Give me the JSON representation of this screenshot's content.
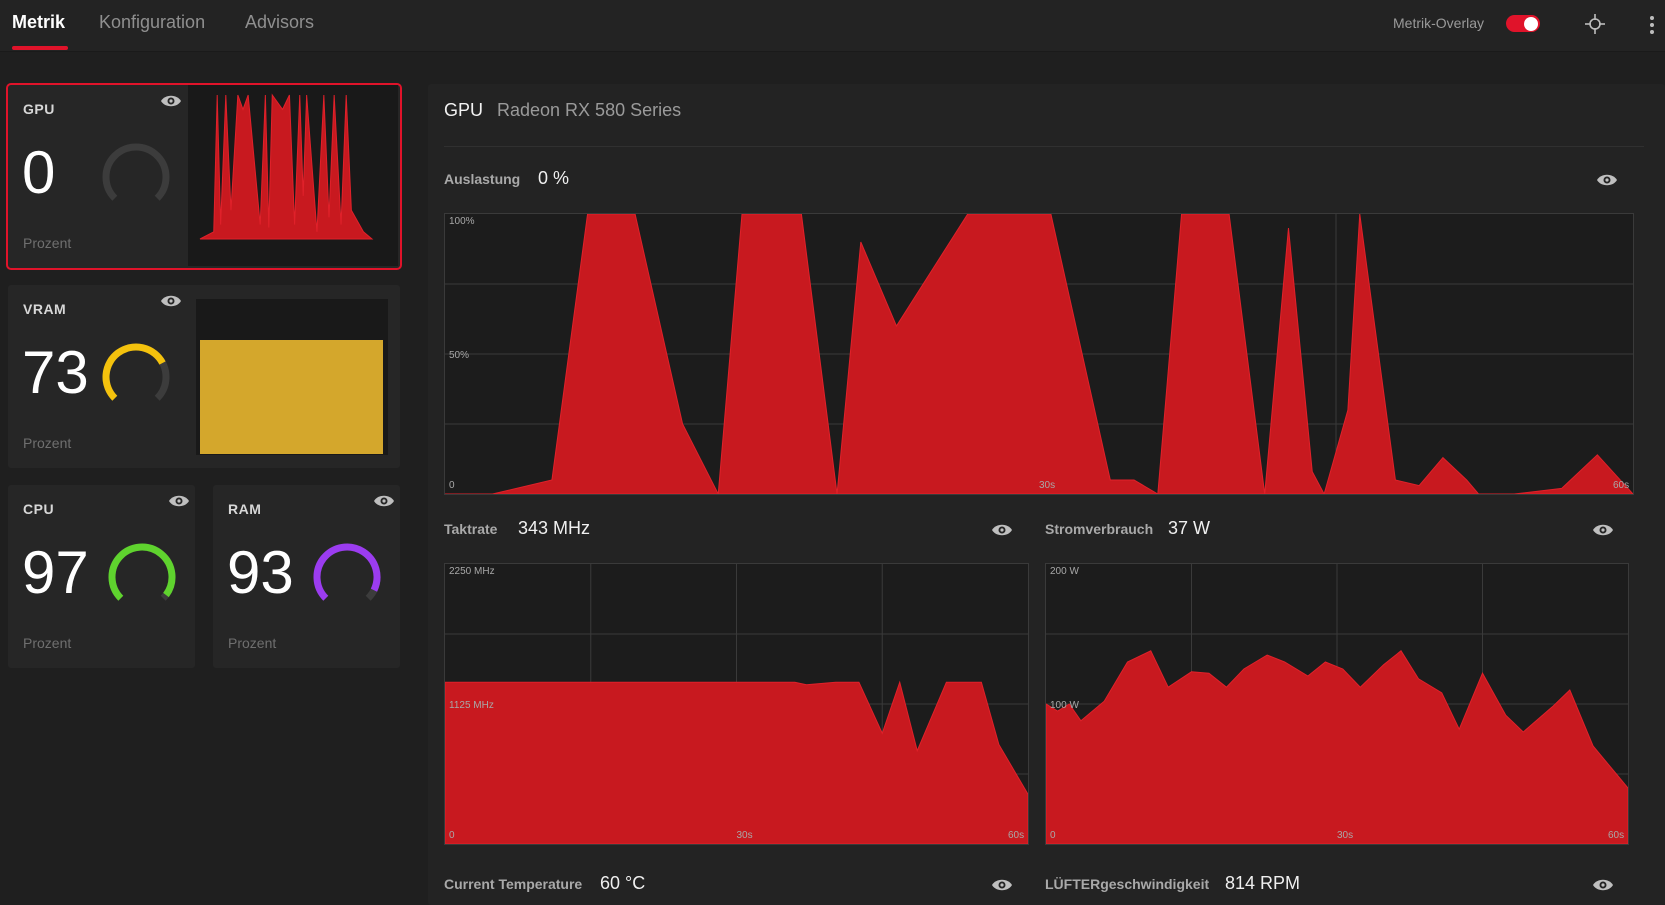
{
  "nav": {
    "tabs": [
      {
        "label": "Metrik"
      },
      {
        "label": "Konfiguration"
      },
      {
        "label": "Advisors"
      }
    ],
    "overlay_label": "Metrik-Overlay",
    "accent": "#e0132a"
  },
  "cards": {
    "gpu": {
      "title": "GPU",
      "value": "0",
      "unit": "Prozent",
      "level": 0,
      "color": "#e0132a"
    },
    "vram": {
      "title": "VRAM",
      "value": "73",
      "unit": "Prozent",
      "level": 73,
      "color": "#f4c20d"
    },
    "cpu": {
      "title": "CPU",
      "value": "97",
      "unit": "Prozent",
      "level": 97,
      "color": "#5fd32e"
    },
    "ram": {
      "title": "RAM",
      "value": "93",
      "unit": "Prozent",
      "level": 93,
      "color": "#9b3cf0"
    }
  },
  "panel": {
    "title": "GPU",
    "subtitle": "Radeon RX 580 Series",
    "metrics": {
      "auslastung": {
        "label": "Auslastung",
        "value": "0 %"
      },
      "taktrate": {
        "label": "Taktrate",
        "value": "343 MHz"
      },
      "strom": {
        "label": "Stromverbrauch",
        "value": "37 W"
      },
      "temp": {
        "label": "Current Temperature",
        "value": "60 °C"
      },
      "fan": {
        "label": "LÜFTERgeschwindigkeit",
        "value": "814 RPM"
      }
    }
  },
  "chart_data": [
    {
      "type": "area",
      "name": "auslastung",
      "x": [
        0,
        4,
        9,
        12,
        14,
        16,
        20,
        23,
        25,
        28,
        30,
        33,
        35,
        38,
        44,
        48,
        51,
        56,
        58,
        60,
        62,
        66,
        69,
        71,
        73,
        74,
        76,
        77,
        80,
        82,
        84,
        86,
        87,
        90,
        94,
        97,
        100
      ],
      "y": [
        0,
        0,
        5,
        100,
        100,
        100,
        25,
        0,
        100,
        100,
        100,
        0,
        90,
        60,
        100,
        100,
        100,
        5,
        5,
        0,
        100,
        100,
        0,
        95,
        8,
        0,
        30,
        100,
        5,
        3,
        13,
        5,
        0,
        0,
        2,
        14,
        0
      ],
      "yticks": [
        "100%",
        "50%",
        "0"
      ],
      "xticks": [
        "30s",
        "60s"
      ],
      "ylim": [
        0,
        100
      ],
      "color": "#c8191f"
    },
    {
      "type": "area",
      "name": "taktrate",
      "x": [
        0,
        20,
        40,
        55,
        60,
        62,
        67,
        68,
        71,
        75,
        78,
        81,
        86,
        88,
        92,
        95,
        100
      ],
      "y": [
        1300,
        1300,
        1300,
        1300,
        1300,
        1280,
        1300,
        1300,
        1300,
        890,
        1300,
        750,
        1300,
        1300,
        1300,
        800,
        400
      ],
      "yticks": [
        "2250 MHz",
        "1125 MHz",
        "0"
      ],
      "xticks": [
        "30s",
        "60s"
      ],
      "ylim": [
        0,
        2250
      ],
      "color": "#c8191f"
    },
    {
      "type": "area",
      "name": "stromverbrauch",
      "x": [
        0,
        2,
        4,
        6,
        10,
        14,
        18,
        21,
        25,
        28,
        31,
        34,
        38,
        41,
        45,
        48,
        51,
        54,
        58,
        61,
        64,
        68,
        71,
        75,
        79,
        82,
        87,
        90,
        94,
        98,
        100
      ],
      "y": [
        100,
        95,
        100,
        88,
        102,
        130,
        138,
        112,
        123,
        122,
        112,
        125,
        135,
        130,
        120,
        130,
        125,
        112,
        128,
        138,
        118,
        108,
        82,
        122,
        92,
        80,
        98,
        110,
        70,
        50,
        40
      ],
      "yticks": [
        "200 W",
        "100 W",
        "0"
      ],
      "xticks": [
        "30s",
        "60s"
      ],
      "ylim": [
        0,
        200
      ],
      "color": "#c8191f"
    },
    {
      "type": "area",
      "name": "gpu-sparkline",
      "x": [
        0,
        8,
        10,
        12,
        15,
        18,
        22,
        25,
        28,
        35,
        38,
        40,
        42,
        48,
        52,
        55,
        58,
        60,
        62,
        68,
        72,
        75,
        78,
        82,
        85,
        88,
        95,
        100
      ],
      "y": [
        0,
        5,
        100,
        10,
        100,
        20,
        100,
        90,
        100,
        10,
        100,
        8,
        100,
        90,
        100,
        10,
        100,
        30,
        100,
        5,
        100,
        15,
        100,
        10,
        100,
        20,
        5,
        0
      ],
      "ylim": [
        0,
        100
      ],
      "color": "#c8191f"
    }
  ]
}
